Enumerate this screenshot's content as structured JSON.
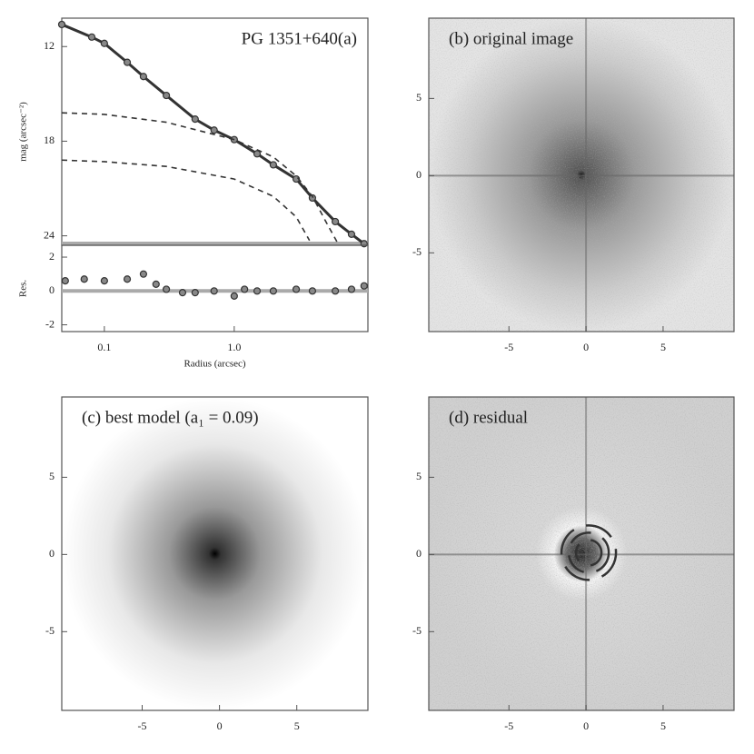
{
  "chart_data": [
    {
      "type": "line",
      "title": "PG 1351+640(a)",
      "ylabel": "mag (arcsec⁻²)",
      "xscale": "log",
      "xlim": [
        0.047,
        10.7
      ],
      "ylim": [
        24.6,
        10.2
      ],
      "yticks": [
        12,
        18,
        24
      ],
      "series": [
        {
          "style": "markers",
          "color": "#333333",
          "x": [
            0.047,
            0.08,
            0.1,
            0.15,
            0.2,
            0.3,
            0.5,
            0.7,
            1.0,
            1.5,
            2,
            3,
            4,
            6,
            8,
            10
          ],
          "values": [
            10.6,
            11.4,
            11.8,
            13.0,
            13.9,
            15.1,
            16.6,
            17.3,
            17.9,
            18.8,
            19.5,
            20.4,
            21.6,
            23.1,
            23.9,
            24.5
          ]
        },
        {
          "style": "dashed",
          "color": "#333333",
          "x": [
            0.047,
            0.1,
            0.3,
            1,
            2,
            3,
            4,
            5,
            6.3
          ],
          "values": [
            16.2,
            16.3,
            16.8,
            17.9,
            19.0,
            20.2,
            21.5,
            23.0,
            24.5
          ]
        },
        {
          "style": "dashed",
          "color": "#333333",
          "x": [
            0.047,
            0.1,
            0.3,
            1,
            2,
            3,
            3.8
          ],
          "values": [
            19.2,
            19.3,
            19.6,
            20.4,
            21.5,
            22.8,
            24.3
          ]
        }
      ]
    },
    {
      "type": "scatter",
      "ylabel": "Res.",
      "xlabel": "Radius (arcsec)",
      "xscale": "log",
      "xlim": [
        0.047,
        10.7
      ],
      "ylim": [
        -2.4,
        2.7
      ],
      "yticks": [
        2,
        0,
        -2
      ],
      "xticks": [
        0.1,
        {
          "value": 1,
          "label": "1.0"
        }
      ],
      "series": [
        {
          "color": "#333333",
          "x": [
            0.05,
            0.07,
            0.1,
            0.15,
            0.2,
            0.25,
            0.3,
            0.4,
            0.5,
            0.7,
            1,
            1.2,
            1.5,
            2,
            3,
            4,
            6,
            8,
            10
          ],
          "values": [
            0.6,
            0.7,
            0.6,
            0.7,
            1.0,
            0.4,
            0.1,
            -0.1,
            -0.1,
            0,
            -0.3,
            0.1,
            0,
            0,
            0.1,
            0,
            0,
            0.1,
            0.3
          ]
        }
      ]
    },
    {
      "type": "image",
      "title": "(b) original image",
      "xlim": [
        -10.2,
        9.6
      ],
      "ylim": [
        -10.1,
        10.2
      ],
      "xticks": [
        -5,
        0,
        5
      ],
      "yticks": [
        -5,
        0,
        5
      ]
    },
    {
      "type": "image",
      "title": "(c) best model (a₁ = 0.09)",
      "xlim": [
        -10.2,
        9.6
      ],
      "ylim": [
        -10.1,
        10.2
      ],
      "xticks": [
        -5,
        0,
        5
      ],
      "yticks": [
        -5,
        0,
        5
      ]
    },
    {
      "type": "image",
      "title": "(d) residual",
      "xlim": [
        -10.2,
        9.6
      ],
      "ylim": [
        -10.1,
        10.2
      ],
      "xticks": [
        -5,
        0,
        5
      ],
      "yticks": [
        -5,
        0,
        5
      ]
    }
  ]
}
